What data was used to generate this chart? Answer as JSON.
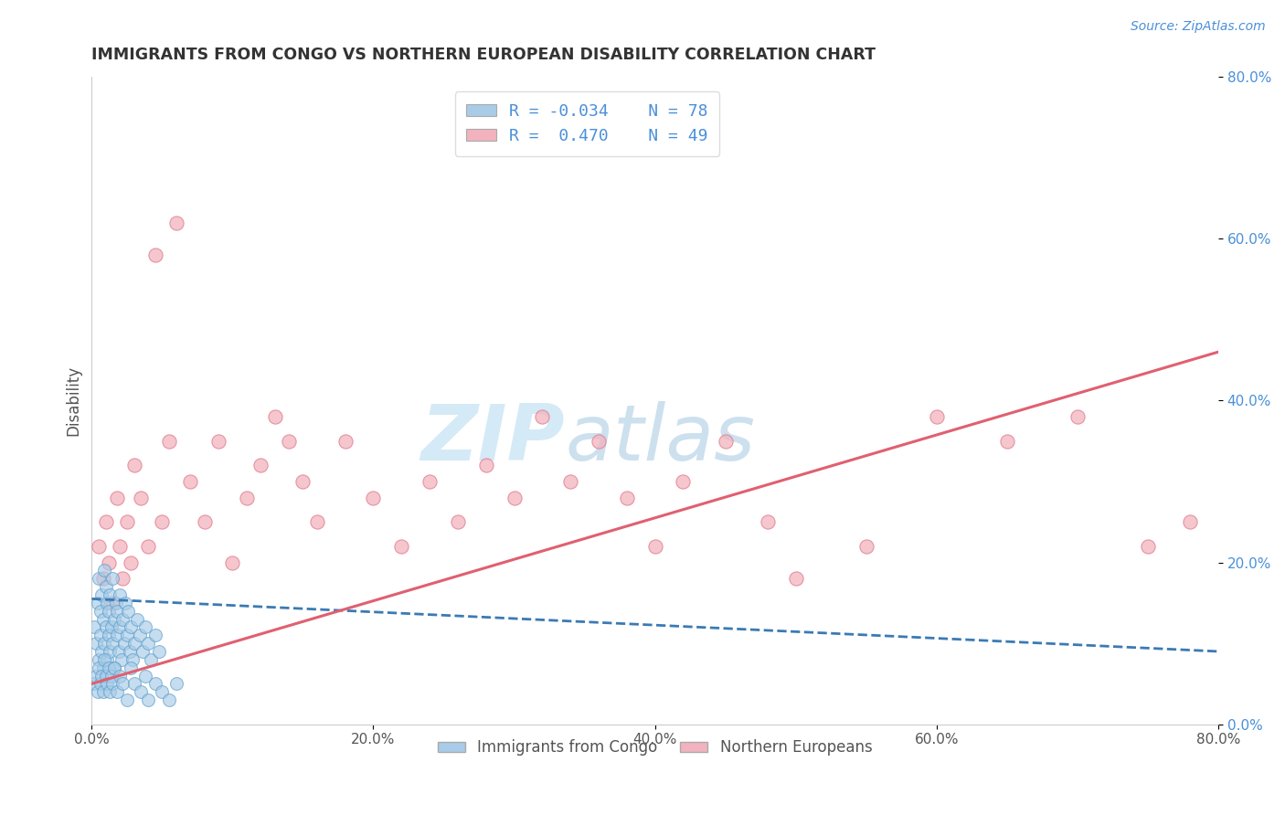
{
  "title": "IMMIGRANTS FROM CONGO VS NORTHERN EUROPEAN DISABILITY CORRELATION CHART",
  "source": "Source: ZipAtlas.com",
  "ylabel": "Disability",
  "xlim": [
    0.0,
    0.8
  ],
  "ylim": [
    0.0,
    0.8
  ],
  "yticks_right": [
    0.0,
    0.2,
    0.4,
    0.6,
    0.8
  ],
  "ytick_labels_right": [
    "0.0%",
    "20.0%",
    "40.0%",
    "60.0%",
    "80.0%"
  ],
  "xticks": [
    0.0,
    0.2,
    0.4,
    0.6,
    0.8
  ],
  "xtick_labels": [
    "0.0%",
    "20.0%",
    "40.0%",
    "60.0%",
    "80.0%"
  ],
  "color_blue": "#a8cce8",
  "color_blue_edge": "#5b9dc9",
  "color_blue_line": "#3a7ab5",
  "color_pink": "#f2b3be",
  "color_pink_edge": "#e07a8a",
  "color_pink_line": "#e06070",
  "color_blue_text": "#4a90d9",
  "watermark_color": "#d0e8f5",
  "title_color": "#333333",
  "background_color": "#ffffff",
  "grid_color": "#cccccc",
  "congo_x": [
    0.002,
    0.003,
    0.004,
    0.005,
    0.005,
    0.006,
    0.006,
    0.007,
    0.007,
    0.008,
    0.008,
    0.009,
    0.009,
    0.01,
    0.01,
    0.011,
    0.011,
    0.012,
    0.012,
    0.013,
    0.013,
    0.014,
    0.015,
    0.015,
    0.016,
    0.016,
    0.017,
    0.018,
    0.018,
    0.019,
    0.02,
    0.02,
    0.021,
    0.022,
    0.023,
    0.024,
    0.025,
    0.026,
    0.027,
    0.028,
    0.029,
    0.03,
    0.032,
    0.034,
    0.036,
    0.038,
    0.04,
    0.042,
    0.045,
    0.048,
    0.002,
    0.003,
    0.004,
    0.005,
    0.006,
    0.007,
    0.008,
    0.009,
    0.01,
    0.011,
    0.012,
    0.013,
    0.014,
    0.015,
    0.016,
    0.018,
    0.02,
    0.022,
    0.025,
    0.028,
    0.03,
    0.035,
    0.038,
    0.04,
    0.045,
    0.05,
    0.055,
    0.06
  ],
  "congo_y": [
    0.12,
    0.1,
    0.15,
    0.08,
    0.18,
    0.11,
    0.14,
    0.09,
    0.16,
    0.07,
    0.13,
    0.19,
    0.1,
    0.12,
    0.17,
    0.08,
    0.15,
    0.11,
    0.14,
    0.09,
    0.16,
    0.12,
    0.1,
    0.18,
    0.13,
    0.07,
    0.15,
    0.11,
    0.14,
    0.09,
    0.16,
    0.12,
    0.08,
    0.13,
    0.1,
    0.15,
    0.11,
    0.14,
    0.09,
    0.12,
    0.08,
    0.1,
    0.13,
    0.11,
    0.09,
    0.12,
    0.1,
    0.08,
    0.11,
    0.09,
    0.05,
    0.06,
    0.04,
    0.07,
    0.05,
    0.06,
    0.04,
    0.08,
    0.06,
    0.05,
    0.07,
    0.04,
    0.06,
    0.05,
    0.07,
    0.04,
    0.06,
    0.05,
    0.03,
    0.07,
    0.05,
    0.04,
    0.06,
    0.03,
    0.05,
    0.04,
    0.03,
    0.05
  ],
  "ne_x": [
    0.005,
    0.008,
    0.01,
    0.012,
    0.015,
    0.018,
    0.02,
    0.022,
    0.025,
    0.028,
    0.03,
    0.035,
    0.04,
    0.045,
    0.05,
    0.055,
    0.06,
    0.07,
    0.08,
    0.09,
    0.1,
    0.11,
    0.12,
    0.13,
    0.14,
    0.15,
    0.16,
    0.18,
    0.2,
    0.22,
    0.24,
    0.26,
    0.28,
    0.3,
    0.32,
    0.34,
    0.36,
    0.38,
    0.4,
    0.42,
    0.45,
    0.48,
    0.5,
    0.55,
    0.6,
    0.65,
    0.7,
    0.75,
    0.78
  ],
  "ne_y": [
    0.22,
    0.18,
    0.25,
    0.2,
    0.15,
    0.28,
    0.22,
    0.18,
    0.25,
    0.2,
    0.32,
    0.28,
    0.22,
    0.58,
    0.25,
    0.35,
    0.62,
    0.3,
    0.25,
    0.35,
    0.2,
    0.28,
    0.32,
    0.38,
    0.35,
    0.3,
    0.25,
    0.35,
    0.28,
    0.22,
    0.3,
    0.25,
    0.32,
    0.28,
    0.38,
    0.3,
    0.35,
    0.28,
    0.22,
    0.3,
    0.35,
    0.25,
    0.18,
    0.22,
    0.38,
    0.35,
    0.38,
    0.22,
    0.25
  ],
  "ne_trend_x": [
    0.0,
    0.8
  ],
  "ne_trend_y": [
    0.05,
    0.46
  ],
  "congo_trend_x": [
    0.0,
    0.8
  ],
  "congo_trend_y": [
    0.155,
    0.09
  ]
}
